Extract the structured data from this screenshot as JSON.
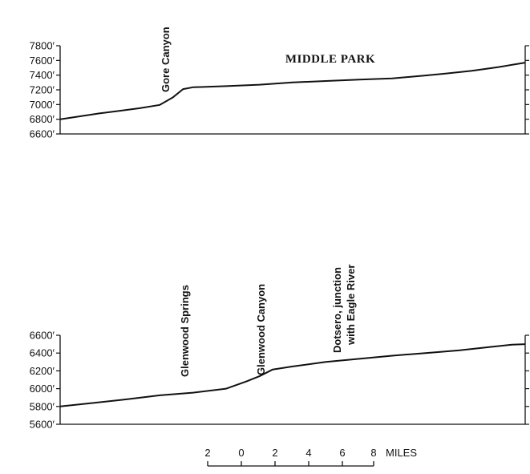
{
  "chart_data": [
    {
      "type": "line",
      "title": "MIDDLE PARK",
      "y_unit": "feet",
      "ylim": [
        6600,
        7800
      ],
      "yticks": [
        "7800′",
        "7600′",
        "7400′",
        "7200′",
        "7000′",
        "6800′",
        "6600′"
      ],
      "ytick_values": [
        7800,
        7600,
        7400,
        7200,
        7000,
        6800,
        6600
      ],
      "x_unit": "miles",
      "xlim": [
        0,
        70
      ],
      "series": [
        {
          "x": [
            0,
            3,
            6,
            9,
            12,
            15,
            17,
            18.5,
            20,
            22,
            25,
            30,
            35,
            40,
            45,
            50,
            55,
            58,
            62,
            66,
            70
          ],
          "values": [
            6800,
            6840,
            6880,
            6915,
            6950,
            6995,
            7100,
            7210,
            7235,
            7240,
            7250,
            7270,
            7300,
            7320,
            7340,
            7355,
            7395,
            7420,
            7460,
            7510,
            7570
          ]
        }
      ],
      "annotations": [
        {
          "text": "Gore Canyon",
          "x": 16.5
        }
      ]
    },
    {
      "type": "line",
      "title": "",
      "y_unit": "feet",
      "ylim": [
        5600,
        6600
      ],
      "yticks": [
        "6600′",
        "6400′",
        "6200′",
        "6000′",
        "5800′",
        "5600′"
      ],
      "ytick_values": [
        6600,
        6400,
        6200,
        6000,
        5800,
        5600
      ],
      "x_unit": "miles",
      "xlim": [
        0,
        70
      ],
      "series": [
        {
          "x": [
            0,
            5,
            10,
            15,
            20,
            25,
            28,
            30,
            32,
            35,
            40,
            45,
            50,
            55,
            60,
            65,
            68,
            70
          ],
          "values": [
            5800,
            5840,
            5880,
            5925,
            5955,
            6000,
            6080,
            6140,
            6215,
            6250,
            6300,
            6335,
            6370,
            6400,
            6430,
            6470,
            6495,
            6500
          ]
        }
      ],
      "annotations": [
        {
          "text": "Glenwood Springs",
          "x": 20.5
        },
        {
          "text": "Glenwood Canyon",
          "x": 31.5
        },
        {
          "text": "Dotsero, junction",
          "x": 41.5
        },
        {
          "text": "with Eagle River",
          "x": 43
        }
      ]
    }
  ],
  "scale_bar": {
    "labels": [
      "2",
      "0",
      "2",
      "4",
      "6",
      "8"
    ],
    "unit": "MILES"
  }
}
